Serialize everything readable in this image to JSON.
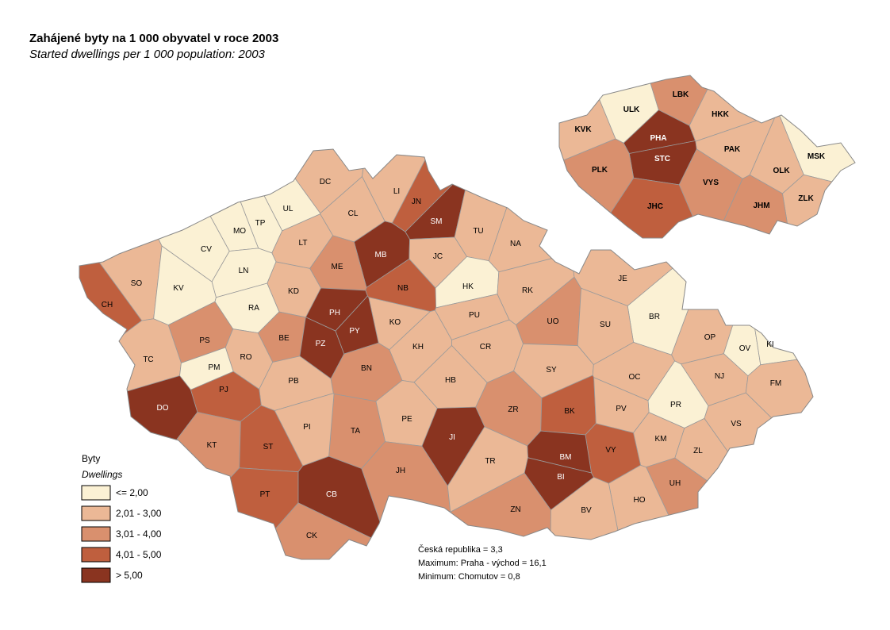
{
  "title": "Zahájené byty na 1 000 obyvatel v roce 2003",
  "subtitle": "Started dwellings per 1 000 population: 2003",
  "legend": {
    "title": "Byty",
    "subtitle": "Dwellings",
    "items": [
      {
        "label": "<= 2,00",
        "color": "#fbf1d4"
      },
      {
        "label": "2,01 - 3,00",
        "color": "#ebb896"
      },
      {
        "label": "3,01 - 4,00",
        "color": "#d9906e"
      },
      {
        "label": "4,01 - 5,00",
        "color": "#bf5f3e"
      },
      {
        "label": "> 5,00",
        "color": "#8a3420"
      }
    ]
  },
  "notes": [
    "Česká republika =  3,3",
    "Maximum: Praha - východ =  16,1",
    "Minimum: Chomutov  = 0,8"
  ],
  "districts": [
    {
      "label": "DC",
      "color": "#ebb896"
    },
    {
      "label": "LI",
      "color": "#ebb896"
    },
    {
      "label": "JN",
      "color": "#bf5f3e"
    },
    {
      "label": "SM",
      "color": "#8a3420"
    },
    {
      "label": "UL",
      "color": "#fbf1d4"
    },
    {
      "label": "TP",
      "color": "#fbf1d4"
    },
    {
      "label": "MO",
      "color": "#fbf1d4"
    },
    {
      "label": "CL",
      "color": "#ebb896"
    },
    {
      "label": "TU",
      "color": "#ebb896"
    },
    {
      "label": "LT",
      "color": "#ebb896"
    },
    {
      "label": "CV",
      "color": "#fbf1d4"
    },
    {
      "label": "MB",
      "color": "#8a3420"
    },
    {
      "label": "JC",
      "color": "#ebb896"
    },
    {
      "label": "NA",
      "color": "#ebb896"
    },
    {
      "label": "ME",
      "color": "#d9906e"
    },
    {
      "label": "LN",
      "color": "#fbf1d4"
    },
    {
      "label": "SO",
      "color": "#ebb896"
    },
    {
      "label": "KV",
      "color": "#fbf1d4"
    },
    {
      "label": "KD",
      "color": "#ebb896"
    },
    {
      "label": "NB",
      "color": "#bf5f3e"
    },
    {
      "label": "HK",
      "color": "#fbf1d4"
    },
    {
      "label": "RK",
      "color": "#ebb896"
    },
    {
      "label": "JE",
      "color": "#ebb896"
    },
    {
      "label": "CH",
      "color": "#bf5f3e"
    },
    {
      "label": "RA",
      "color": "#fbf1d4"
    },
    {
      "label": "PH",
      "color": "#8a3420"
    },
    {
      "label": "KO",
      "color": "#ebb896"
    },
    {
      "label": "PU",
      "color": "#ebb896"
    },
    {
      "label": "UO",
      "color": "#d9906e"
    },
    {
      "label": "BR",
      "color": "#fbf1d4"
    },
    {
      "label": "SU",
      "color": "#ebb896"
    },
    {
      "label": "PS",
      "color": "#d9906e"
    },
    {
      "label": "BE",
      "color": "#d9906e"
    },
    {
      "label": "PY",
      "color": "#8a3420"
    },
    {
      "label": "PZ",
      "color": "#8a3420"
    },
    {
      "label": "KH",
      "color": "#ebb896"
    },
    {
      "label": "CR",
      "color": "#ebb896"
    },
    {
      "label": "OP",
      "color": "#ebb896"
    },
    {
      "label": "OV",
      "color": "#fbf1d4"
    },
    {
      "label": "KI",
      "color": "#fbf1d4"
    },
    {
      "label": "TC",
      "color": "#ebb896"
    },
    {
      "label": "RO",
      "color": "#ebb896"
    },
    {
      "label": "PM",
      "color": "#fbf1d4"
    },
    {
      "label": "BN",
      "color": "#d9906e"
    },
    {
      "label": "SY",
      "color": "#ebb896"
    },
    {
      "label": "OC",
      "color": "#ebb896"
    },
    {
      "label": "NJ",
      "color": "#ebb896"
    },
    {
      "label": "PB",
      "color": "#ebb896"
    },
    {
      "label": "HB",
      "color": "#ebb896"
    },
    {
      "label": "FM",
      "color": "#ebb896"
    },
    {
      "label": "PJ",
      "color": "#bf5f3e"
    },
    {
      "label": "DO",
      "color": "#8a3420"
    },
    {
      "label": "ZR",
      "color": "#d9906e"
    },
    {
      "label": "BK",
      "color": "#bf5f3e"
    },
    {
      "label": "PR",
      "color": "#fbf1d4"
    },
    {
      "label": "PV",
      "color": "#ebb896"
    },
    {
      "label": "PE",
      "color": "#ebb896"
    },
    {
      "label": "JI",
      "color": "#8a3420"
    },
    {
      "label": "TA",
      "color": "#d9906e"
    },
    {
      "label": "PI",
      "color": "#ebb896"
    },
    {
      "label": "KT",
      "color": "#d9906e"
    },
    {
      "label": "ST",
      "color": "#bf5f3e"
    },
    {
      "label": "KM",
      "color": "#ebb896"
    },
    {
      "label": "VY",
      "color": "#bf5f3e"
    },
    {
      "label": "ZL",
      "color": "#ebb896"
    },
    {
      "label": "BM",
      "color": "#8a3420"
    },
    {
      "label": "JH",
      "color": "#d9906e"
    },
    {
      "label": "TR",
      "color": "#ebb896"
    },
    {
      "label": "BI",
      "color": "#8a3420"
    },
    {
      "label": "PT",
      "color": "#bf5f3e"
    },
    {
      "label": "CB",
      "color": "#8a3420"
    },
    {
      "label": "UH",
      "color": "#d9906e"
    },
    {
      "label": "HO",
      "color": "#ebb896"
    },
    {
      "label": "ZN",
      "color": "#d9906e"
    },
    {
      "label": "BV",
      "color": "#ebb896"
    },
    {
      "label": "VS",
      "color": "#ebb896"
    },
    {
      "label": "CK",
      "color": "#d9906e"
    }
  ],
  "regions": [
    {
      "label": "ULK",
      "color": "#fbf1d4"
    },
    {
      "label": "LBK",
      "color": "#d9906e"
    },
    {
      "label": "HKK",
      "color": "#ebb896"
    },
    {
      "label": "KVK",
      "color": "#ebb896"
    },
    {
      "label": "PHA",
      "color": "#8a3420"
    },
    {
      "label": "STC",
      "color": "#8a3420"
    },
    {
      "label": "PAK",
      "color": "#ebb896"
    },
    {
      "label": "MSK",
      "color": "#fbf1d4"
    },
    {
      "label": "PLK",
      "color": "#d9906e"
    },
    {
      "label": "OLK",
      "color": "#ebb896"
    },
    {
      "label": "VYS",
      "color": "#d9906e"
    },
    {
      "label": "ZLK",
      "color": "#ebb896"
    },
    {
      "label": "JHC",
      "color": "#bf5f3e"
    },
    {
      "label": "JHM",
      "color": "#d9906e"
    }
  ]
}
